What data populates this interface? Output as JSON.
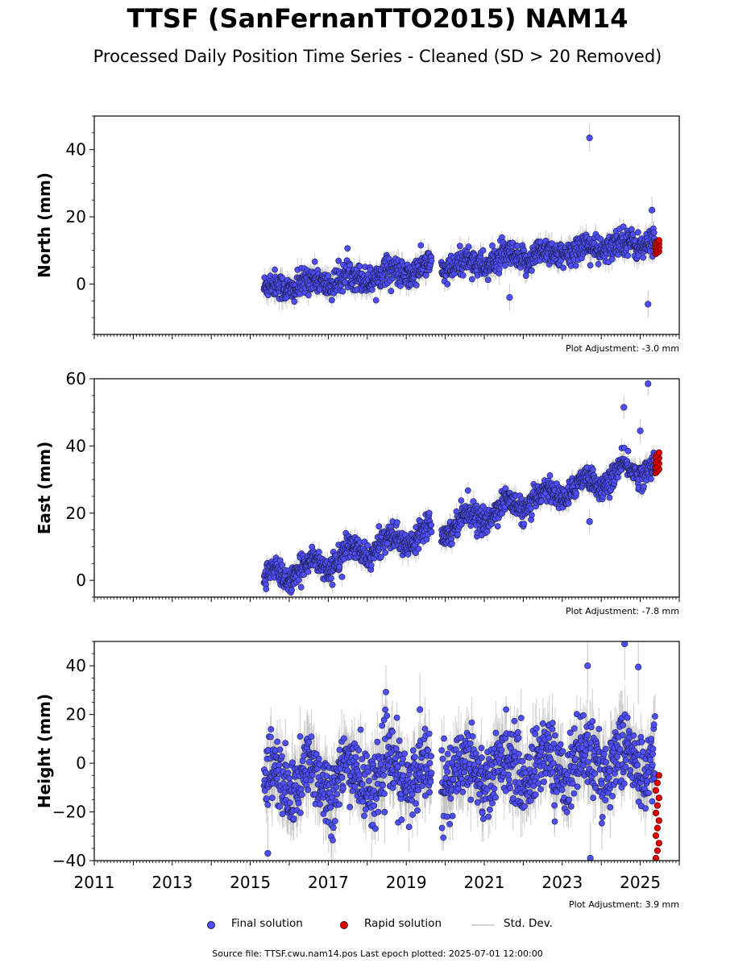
{
  "header": {
    "title": "TTSF (SanFernanTTO2015) NAM14",
    "subtitle": "Processed Daily Position Time Series - Cleaned (SD > 20 Removed)"
  },
  "footer": {
    "source": "Source file: TTSF.cwu.nam14.pos  Last epoch plotted: 2025-07-01 12:00:00"
  },
  "legend": {
    "final": "Final solution",
    "rapid": "Rapid solution",
    "std": "Std. Dev."
  },
  "colors": {
    "final": "#4f4ffa",
    "rapid": "#e00000",
    "std": "#b0b0b0",
    "marker_edge": "#1a1a40"
  },
  "chart_data": [
    {
      "type": "scatter",
      "ylabel": "North (mm)",
      "adjustment": "Plot Adjustment: -3.0 mm",
      "xlim": [
        2011,
        2026
      ],
      "ylim": [
        -15,
        50
      ],
      "yticks": [
        0,
        20,
        40
      ],
      "trend": {
        "x": [
          2015.35,
          2025.45
        ],
        "y": [
          -1.5,
          13
        ]
      },
      "gap": [
        2019.65,
        2019.9
      ],
      "noise": 2.0,
      "ripple": 1.5,
      "outliers": [
        {
          "x": 2023.7,
          "y": 43.5
        },
        {
          "x": 2025.2,
          "y": -6
        },
        {
          "x": 2025.3,
          "y": 22
        },
        {
          "x": 2021.65,
          "y": -4
        }
      ],
      "rapid": {
        "x": [
          2025.4,
          2025.48
        ],
        "y": [
          9,
          13
        ]
      }
    },
    {
      "type": "scatter",
      "ylabel": "East (mm)",
      "adjustment": "Plot Adjustment: -7.8 mm",
      "xlim": [
        2011,
        2026
      ],
      "ylim": [
        -5,
        60
      ],
      "yticks": [
        0,
        20,
        40,
        60
      ],
      "trend": {
        "x": [
          2015.35,
          2025.45
        ],
        "y": [
          0,
          35
        ]
      },
      "gap": [
        2019.65,
        2019.9
      ],
      "noise": 1.8,
      "ripple": 2.5,
      "outliers": [
        {
          "x": 2025.2,
          "y": 58.5
        },
        {
          "x": 2024.58,
          "y": 51.5
        },
        {
          "x": 2025.0,
          "y": 44.5
        },
        {
          "x": 2023.7,
          "y": 17.5
        }
      ],
      "rapid": {
        "x": [
          2025.4,
          2025.48
        ],
        "y": [
          32,
          38
        ]
      }
    },
    {
      "type": "scatter",
      "ylabel": "Height (mm)",
      "adjustment": "Plot Adjustment: 3.9 mm",
      "xlim": [
        2011,
        2026
      ],
      "ylim": [
        -40,
        50
      ],
      "yticks": [
        -40,
        -20,
        0,
        20,
        40
      ],
      "xticks": [
        2011,
        2013,
        2015,
        2017,
        2019,
        2021,
        2023,
        2025
      ],
      "trend": {
        "x": [
          2015.35,
          2025.45
        ],
        "y": [
          -8,
          2
        ]
      },
      "gap": [
        2019.65,
        2019.9
      ],
      "noise": 7.5,
      "ripple": 6,
      "outliers": [
        {
          "x": 2024.6,
          "y": 49
        },
        {
          "x": 2023.65,
          "y": 40
        },
        {
          "x": 2024.95,
          "y": 39.5
        },
        {
          "x": 2015.45,
          "y": -37
        },
        {
          "x": 2023.72,
          "y": -39
        },
        {
          "x": 2019.35,
          "y": 22
        }
      ],
      "rapid": {
        "x": [
          2025.4,
          2025.48
        ],
        "y": [
          -39,
          -5
        ]
      }
    }
  ]
}
